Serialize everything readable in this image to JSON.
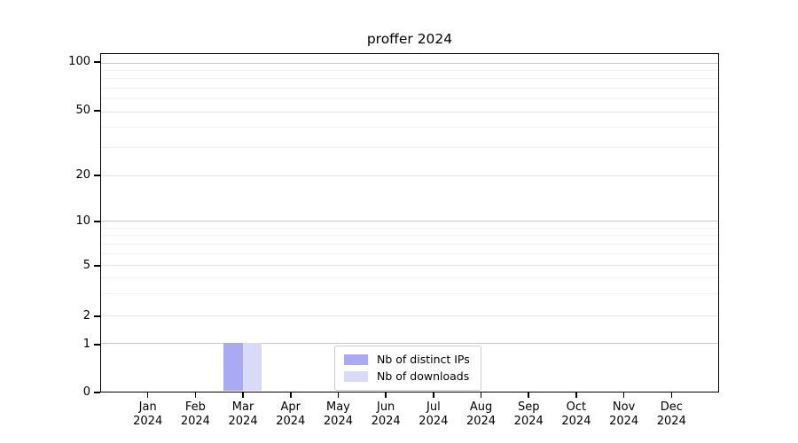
{
  "chart_data": {
    "type": "bar",
    "title": "proffer 2024",
    "categories": [
      "Jan 2024",
      "Feb 2024",
      "Mar 2024",
      "Apr 2024",
      "May 2024",
      "Jun 2024",
      "Jul 2024",
      "Aug 2024",
      "Sep 2024",
      "Oct 2024",
      "Nov 2024",
      "Dec 2024"
    ],
    "series": [
      {
        "name": "Nb of distinct IPs",
        "color": "#a9a9f4",
        "values": [
          0,
          0,
          1,
          0,
          0,
          0,
          0,
          0,
          0,
          0,
          0,
          0
        ]
      },
      {
        "name": "Nb of downloads",
        "color": "#d9d9f8",
        "values": [
          0,
          0,
          1,
          0,
          0,
          0,
          0,
          0,
          0,
          0,
          0,
          0
        ]
      }
    ],
    "yticks": [
      100,
      50,
      20,
      10,
      5,
      2,
      1,
      0
    ],
    "ylim": [
      0,
      110
    ],
    "yscale": "log-like",
    "xlabel": "",
    "ylabel": "",
    "grid": true,
    "legend_position": "lower center"
  },
  "colors": {
    "axis": "#000000",
    "grid_decade": "#c6c6c6",
    "grid_major": "#e4e4e4",
    "grid_minor": "#f0f0f0",
    "legend_border": "#cccccc",
    "background": "#ffffff"
  }
}
